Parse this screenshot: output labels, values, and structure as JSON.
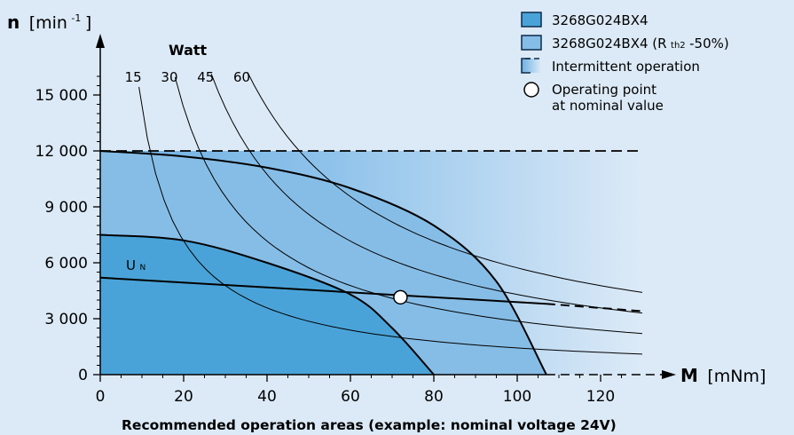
{
  "chart_data": {
    "type": "area",
    "title": "",
    "caption": "Recommended operation areas (example: nominal voltage 24V)",
    "ylabel": "n",
    "ylabel_unit_open": "[min",
    "ylabel_unit_sup": "-1",
    "ylabel_unit_close": "]",
    "xlabel": "M",
    "xlabel_unit": "[mNm]",
    "xlim": [
      0,
      130
    ],
    "ylim": [
      0,
      16500
    ],
    "x_ticks": [
      0,
      20,
      40,
      60,
      80,
      100,
      120
    ],
    "y_ticks": [
      0,
      3000,
      6000,
      9000,
      12000,
      15000
    ],
    "x_tick_labels": [
      "0",
      "20",
      "40",
      "60",
      "80",
      "100",
      "120"
    ],
    "y_tick_labels": [
      "0",
      "3 000",
      "6 000",
      "9 000",
      "12 000",
      "15 000"
    ],
    "regions": [
      {
        "name": "3268G024BX4",
        "color": "#4aa3d8",
        "boundary_x": [
          0,
          20,
          40,
          60,
          70,
          80
        ],
        "boundary_y": [
          7500,
          7200,
          6000,
          4300,
          2500,
          0
        ]
      },
      {
        "name": "3268G024BX4 (Rth2 -50%)",
        "color": "#86bde6",
        "boundary_x": [
          0,
          20,
          40,
          60,
          80,
          95,
          107
        ],
        "boundary_y": [
          12000,
          11700,
          11100,
          10000,
          8000,
          5000,
          0
        ]
      },
      {
        "name": "Intermittent operation",
        "color": "#9ccbef",
        "x_range": [
          0,
          130
        ],
        "y_max": 12000
      }
    ],
    "legend": [
      {
        "swatch": "solid-dark",
        "text": "3268G024BX4",
        "sub": ""
      },
      {
        "swatch": "solid-light",
        "text": "3268G024BX4 (R",
        "sub": "th2",
        "text_after": " -50%)"
      },
      {
        "swatch": "gradient-dashed",
        "text": "Intermittent operation",
        "sub": ""
      },
      {
        "swatch": "circle",
        "text": "Operating point",
        "text_line2": "at nominal value",
        "sub": ""
      }
    ],
    "legend_position": "top-right",
    "watt_title": "Watt",
    "power_curves": [
      {
        "watts": 15,
        "label": "15"
      },
      {
        "watts": 30,
        "label": "30"
      },
      {
        "watts": 45,
        "label": "45"
      },
      {
        "watts": 60,
        "label": "60"
      }
    ],
    "nominal_voltage_line": {
      "label": "U",
      "label_sub": "N",
      "x": [
        0,
        107,
        130
      ],
      "y": [
        5200,
        3800,
        3400
      ]
    },
    "intermittent_limit": 12000,
    "operating_point": {
      "x": 72,
      "y": 4150
    }
  }
}
